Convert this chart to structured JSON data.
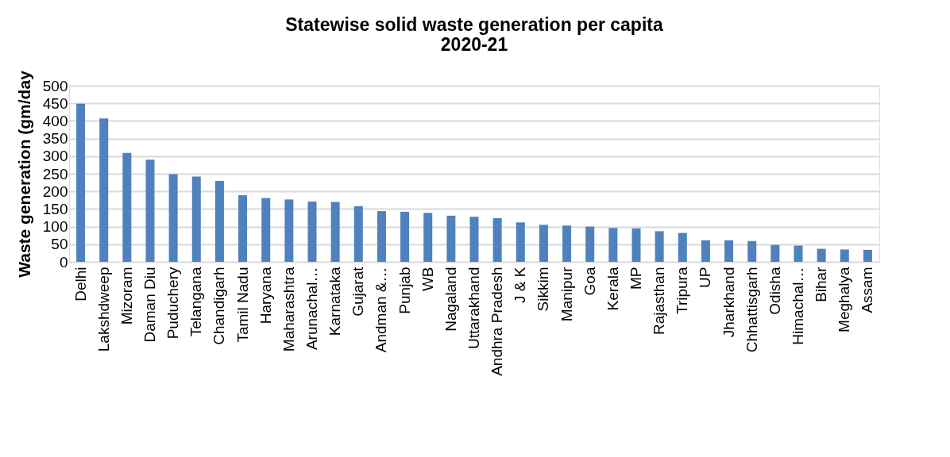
{
  "chart_data": {
    "type": "bar",
    "title": [
      "Statewise solid waste generation per capita",
      "2020-21"
    ],
    "ylabel": "Waste generation (gm/day",
    "categories": [
      "Delhi",
      "Lakshdweep",
      "Mizoram",
      "Daman Diu",
      "Puduchery",
      "Telangana",
      "Chandigarh",
      "Tamil Nadu",
      "Haryana",
      "Maharashtra",
      "Arunachal…",
      "Karnataka",
      "Gujarat",
      "Andman &…",
      "Punjab",
      "WB",
      "Nagaland",
      "Uttarakhand",
      "Andhra Pradesh",
      "J & K",
      "Sikkim",
      "Manipur",
      "Goa",
      "Kerala",
      "MP",
      "Rajasthan",
      "Tripura",
      "UP",
      "Jharkhand",
      "Chhattisgarh",
      "Odisha",
      "Himachal…",
      "Bihar",
      "Meghalya",
      "Assam"
    ],
    "values": [
      449,
      407,
      309,
      290,
      249,
      242,
      230,
      189,
      181,
      177,
      171,
      170,
      158,
      144,
      142,
      139,
      131,
      128,
      124,
      112,
      105,
      103,
      100,
      96,
      95,
      87,
      82,
      61,
      61,
      59,
      48,
      46,
      37,
      35,
      34
    ],
    "color": "#4f81bd",
    "ylim": [
      0,
      500
    ],
    "yticks": [
      0,
      50,
      100,
      150,
      200,
      250,
      300,
      350,
      400,
      450,
      500
    ],
    "grid": "y"
  }
}
